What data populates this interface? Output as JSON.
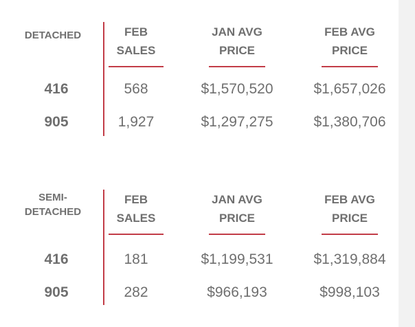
{
  "tables": [
    {
      "category": "DETACHED",
      "headers": [
        [
          "FEB",
          "SALES"
        ],
        [
          "JAN AVG",
          "PRICE"
        ],
        [
          "FEB AVG",
          "PRICE"
        ]
      ],
      "rows": [
        {
          "area": "416",
          "feb_sales": "568",
          "jan_avg_price": "$1,570,520",
          "feb_avg_price": "$1,657,026"
        },
        {
          "area": "905",
          "feb_sales": "1,927",
          "jan_avg_price": "$1,297,275",
          "feb_avg_price": "$1,380,706"
        }
      ]
    },
    {
      "category": "SEMI-\nDETACHED",
      "headers": [
        [
          "FEB",
          "SALES"
        ],
        [
          "JAN AVG",
          "PRICE"
        ],
        [
          "FEB AVG",
          "PRICE"
        ]
      ],
      "rows": [
        {
          "area": "416",
          "feb_sales": "181",
          "jan_avg_price": "$1,199,531",
          "feb_avg_price": "$1,319,884"
        },
        {
          "area": "905",
          "feb_sales": "282",
          "jan_avg_price": "$966,193",
          "feb_avg_price": "$998,103"
        }
      ]
    }
  ],
  "colors": {
    "accent": "#c23c47",
    "text": "#6f6f6f",
    "background": "#ffffff",
    "side_strip": "#f2f2f2"
  }
}
